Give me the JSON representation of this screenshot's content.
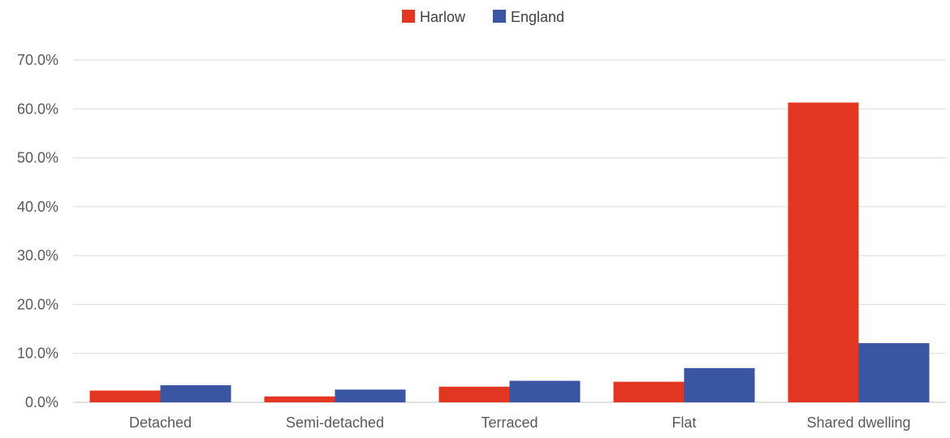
{
  "chart_data": {
    "type": "bar",
    "categories": [
      "Detached",
      "Semi-detached",
      "Terraced",
      "Flat",
      "Shared dwelling"
    ],
    "series": [
      {
        "name": "Harlow",
        "color": "#e33622",
        "values": [
          2.4,
          1.2,
          3.2,
          4.2,
          61.3
        ]
      },
      {
        "name": "England",
        "color": "#3a56a3",
        "values": [
          3.5,
          2.6,
          4.4,
          7.0,
          12.1
        ]
      }
    ],
    "ylim": [
      0,
      70
    ],
    "yticks": [
      0,
      10,
      20,
      30,
      40,
      50,
      60,
      70
    ],
    "ytick_labels": [
      "0.0%",
      "10.0%",
      "20.0%",
      "30.0%",
      "40.0%",
      "50.0%",
      "60.0%",
      "70.0%"
    ],
    "grid": true,
    "legend_position": "top-center",
    "title": "",
    "xlabel": "",
    "ylabel": ""
  }
}
